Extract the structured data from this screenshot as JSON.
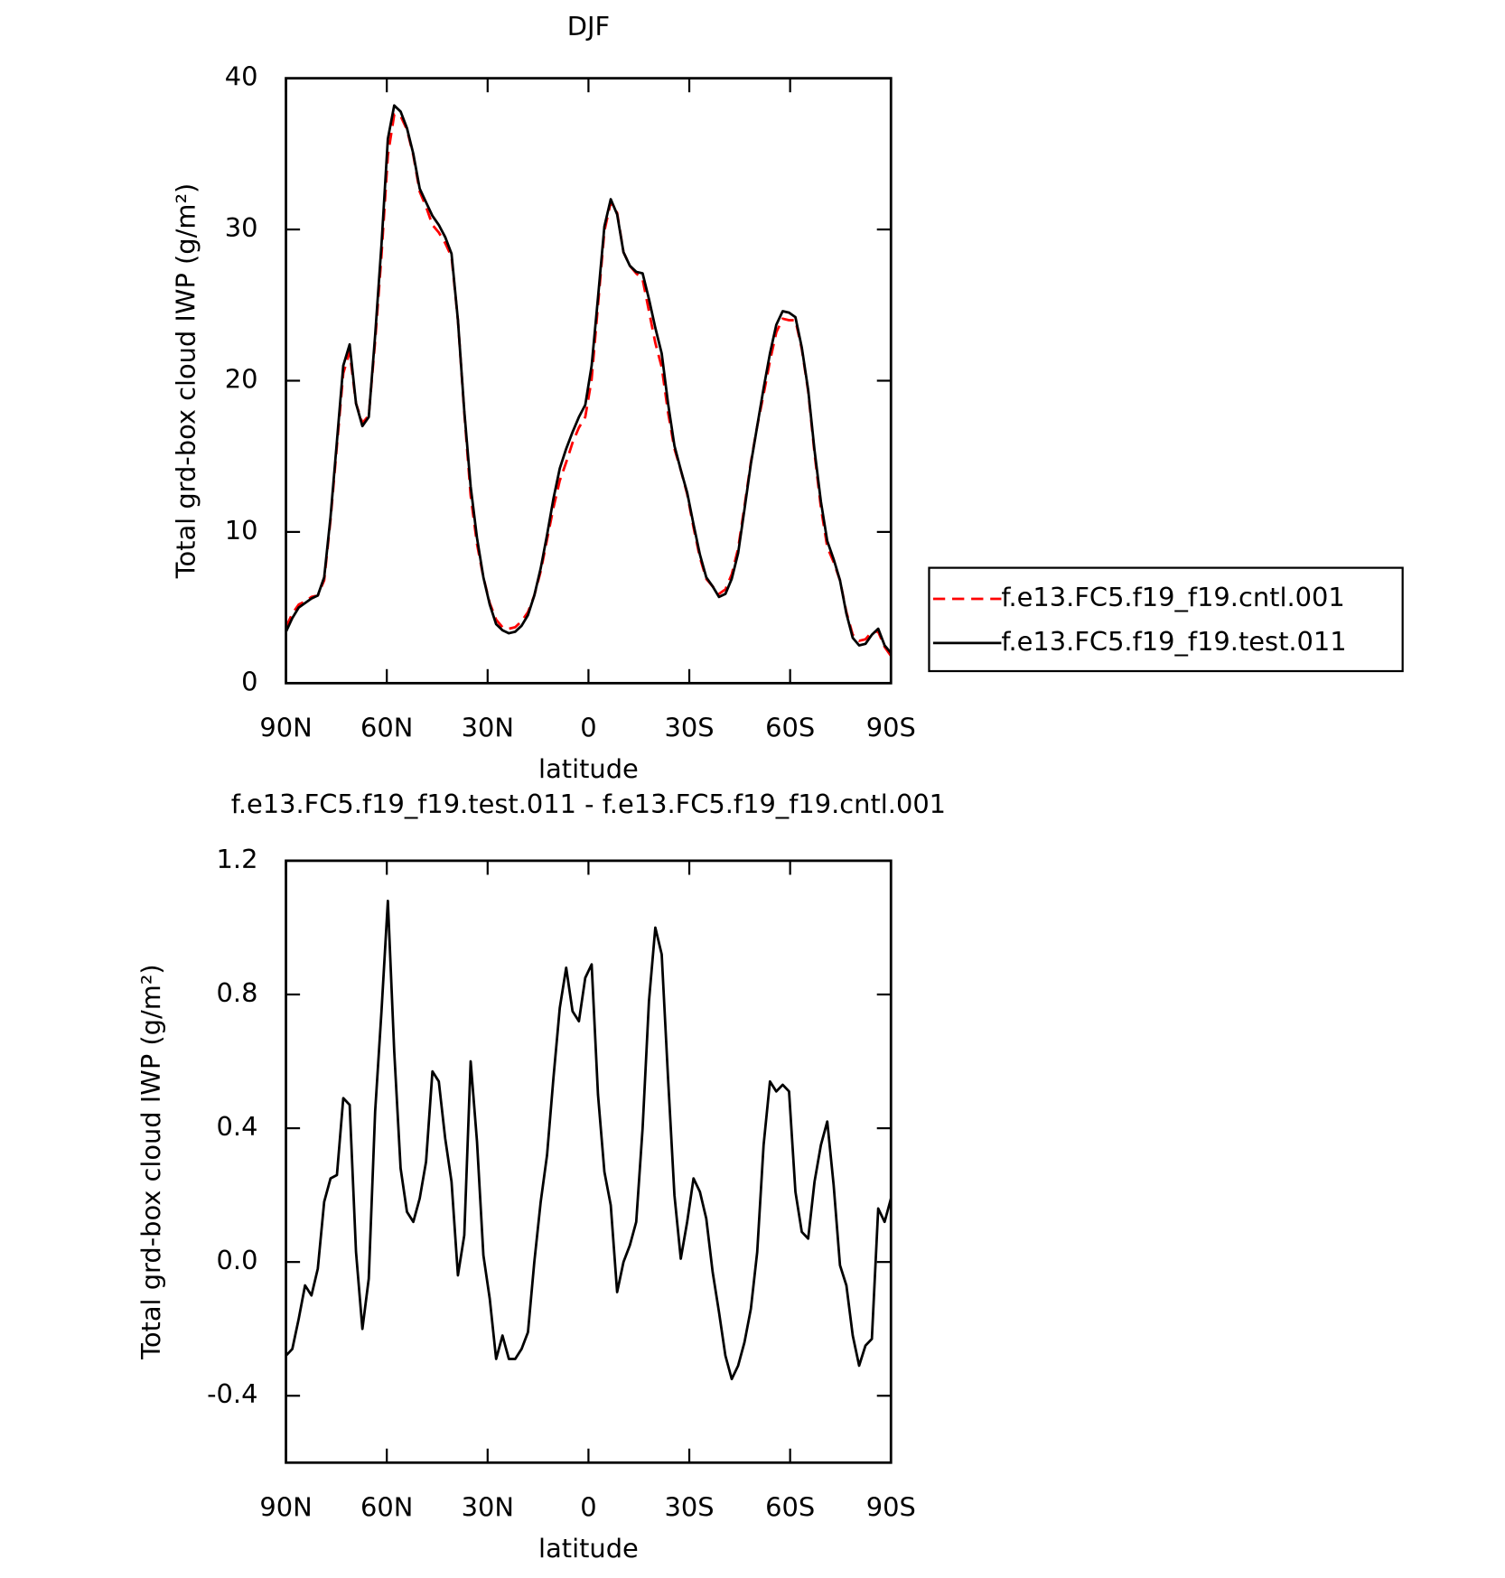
{
  "chart_data": [
    {
      "type": "line",
      "title": "DJF",
      "xlabel": "latitude",
      "ylabel": "Total grd-box cloud IWP (g/m²)",
      "x": [
        90,
        88.11,
        86.21,
        84.32,
        82.42,
        80.53,
        78.63,
        76.74,
        74.84,
        72.95,
        71.05,
        69.16,
        67.26,
        65.37,
        63.47,
        61.58,
        59.68,
        57.79,
        55.89,
        54.0,
        52.11,
        50.21,
        48.32,
        46.42,
        44.53,
        42.63,
        40.74,
        38.84,
        36.95,
        35.05,
        33.16,
        31.26,
        29.37,
        27.47,
        25.58,
        23.68,
        21.79,
        19.89,
        18.0,
        16.11,
        14.21,
        12.32,
        10.42,
        8.53,
        6.63,
        4.74,
        2.84,
        0.95,
        -0.95,
        -2.84,
        -4.74,
        -6.63,
        -8.53,
        -10.42,
        -12.32,
        -14.21,
        -16.11,
        -18.0,
        -19.89,
        -21.79,
        -23.68,
        -25.58,
        -27.47,
        -29.37,
        -31.26,
        -33.16,
        -35.05,
        -36.95,
        -38.84,
        -40.74,
        -42.63,
        -44.53,
        -46.42,
        -48.32,
        -50.21,
        -52.11,
        -54.0,
        -55.89,
        -57.79,
        -59.68,
        -61.58,
        -63.47,
        -65.37,
        -67.26,
        -69.16,
        -71.05,
        -72.95,
        -74.84,
        -76.74,
        -78.63,
        -80.53,
        -82.42,
        -84.32,
        -86.21,
        -88.11,
        -90
      ],
      "series": [
        {
          "name": "f.e13.FC5.f19_f19.cntl.001",
          "color": "#ff0000",
          "line_style": "dashed",
          "values": [
            3.7,
            4.6,
            5.2,
            5.4,
            5.7,
            5.8,
            6.8,
            10.8,
            15.7,
            20.5,
            21.9,
            18.5,
            17.2,
            17.7,
            22.6,
            28.3,
            34.9,
            37.6,
            37.5,
            36.6,
            34.9,
            32.5,
            31.5,
            30.3,
            29.8,
            29.1,
            28.2,
            24.0,
            17.9,
            12.4,
            9.2,
            7.0,
            5.3,
            4.2,
            3.7,
            3.6,
            3.7,
            4.1,
            4.7,
            5.8,
            7.4,
            9.5,
            11.6,
            13.4,
            14.6,
            15.9,
            16.9,
            17.6,
            20.1,
            25.0,
            29.9,
            31.8,
            31.1,
            28.5,
            27.6,
            27.1,
            26.7,
            24.6,
            22.5,
            20.9,
            17.9,
            15.5,
            14.1,
            12.5,
            10.3,
            8.3,
            6.9,
            6.4,
            5.9,
            6.2,
            7.2,
            8.9,
            11.7,
            14.6,
            17.0,
            19.1,
            21.3,
            23.2,
            24.1,
            24.0,
            24.0,
            22.1,
            19.3,
            15.2,
            11.6,
            9.0,
            8.0,
            6.8,
            4.7,
            3.2,
            2.8,
            2.9,
            3.4,
            3.4,
            2.4,
            1.8
          ]
        },
        {
          "name": "f.e13.FC5.f19_f19.test.011",
          "color": "#000000",
          "line_style": "solid",
          "values": [
            3.4,
            4.3,
            5.0,
            5.3,
            5.6,
            5.8,
            7.0,
            11,
            16,
            21,
            22.4,
            18.5,
            17.0,
            17.6,
            23,
            29,
            36,
            38.2,
            37.8,
            36.7,
            35,
            32.7,
            31.8,
            30.9,
            30.3,
            29.5,
            28.4,
            24,
            18,
            13,
            9.6,
            7.0,
            5.2,
            3.9,
            3.5,
            3.3,
            3.4,
            3.8,
            4.5,
            5.8,
            7.6,
            9.8,
            12.2,
            14.2,
            15.5,
            16.6,
            17.6,
            18.4,
            21,
            25.5,
            30.2,
            32,
            31,
            28.5,
            27.6,
            27.2,
            27.1,
            25.4,
            23.5,
            21.8,
            18.5,
            15.7,
            14.1,
            12.6,
            10.5,
            8.5,
            7.0,
            6.4,
            5.7,
            5.9,
            6.9,
            8.6,
            11.5,
            14.5,
            17.0,
            19.5,
            21.8,
            23.7,
            24.6,
            24.5,
            24.2,
            22.2,
            19.4,
            15.4,
            12.0,
            9.4,
            8.2,
            6.8,
            4.6,
            3.0,
            2.5,
            2.6,
            3.2,
            3.6,
            2.5,
            2.0
          ]
        }
      ],
      "xlim": [
        90,
        -90
      ],
      "xticks": [
        {
          "value": 90,
          "label": "90N"
        },
        {
          "value": 60,
          "label": "60N"
        },
        {
          "value": 30,
          "label": "30N"
        },
        0,
        {
          "value": -30,
          "label": "30S"
        },
        {
          "value": -60,
          "label": "60S"
        },
        {
          "value": -90,
          "label": "90S"
        }
      ],
      "ylim": [
        0,
        40
      ],
      "yticks": [
        0,
        10,
        20,
        30,
        40
      ],
      "legend": "right"
    },
    {
      "type": "line",
      "title": "f.e13.FC5.f19_f19.test.011 - f.e13.FC5.f19_f19.cntl.001",
      "xlabel": "latitude",
      "ylabel": "Total grd-box cloud IWP (g/m²)",
      "x": [
        90,
        88.11,
        86.21,
        84.32,
        82.42,
        80.53,
        78.63,
        76.74,
        74.84,
        72.95,
        71.05,
        69.16,
        67.26,
        65.37,
        63.47,
        61.58,
        59.68,
        57.79,
        55.89,
        54.0,
        52.11,
        50.21,
        48.32,
        46.42,
        44.53,
        42.63,
        40.74,
        38.84,
        36.95,
        35.05,
        33.16,
        31.26,
        29.37,
        27.47,
        25.58,
        23.68,
        21.79,
        19.89,
        18.0,
        16.11,
        14.21,
        12.32,
        10.42,
        8.53,
        6.63,
        4.74,
        2.84,
        0.95,
        -0.95,
        -2.84,
        -4.74,
        -6.63,
        -8.53,
        -10.42,
        -12.32,
        -14.21,
        -16.11,
        -18.0,
        -19.89,
        -21.79,
        -23.68,
        -25.58,
        -27.47,
        -29.37,
        -31.26,
        -33.16,
        -35.05,
        -36.95,
        -38.84,
        -40.74,
        -42.63,
        -44.53,
        -46.42,
        -48.32,
        -50.21,
        -52.11,
        -54.0,
        -55.89,
        -57.79,
        -59.68,
        -61.58,
        -63.47,
        -65.37,
        -67.26,
        -69.16,
        -71.05,
        -72.95,
        -74.84,
        -76.74,
        -78.63,
        -80.53,
        -82.42,
        -84.32,
        -86.21,
        -88.11,
        -90
      ],
      "color": "#000000",
      "values": [
        -0.28,
        -0.26,
        -0.17,
        -0.07,
        -0.1,
        -0.02,
        0.18,
        0.25,
        0.26,
        0.49,
        0.47,
        0.03,
        -0.2,
        -0.05,
        0.45,
        0.75,
        1.08,
        0.63,
        0.28,
        0.15,
        0.12,
        0.19,
        0.3,
        0.57,
        0.54,
        0.37,
        0.24,
        -0.04,
        0.08,
        0.6,
        0.36,
        0.02,
        -0.11,
        -0.29,
        -0.22,
        -0.29,
        -0.29,
        -0.26,
        -0.21,
        0.0,
        0.18,
        0.32,
        0.55,
        0.76,
        0.88,
        0.75,
        0.72,
        0.85,
        0.89,
        0.5,
        0.27,
        0.17,
        -0.09,
        0.0,
        0.05,
        0.12,
        0.4,
        0.78,
        1.0,
        0.92,
        0.55,
        0.2,
        0.01,
        0.12,
        0.25,
        0.21,
        0.13,
        -0.03,
        -0.15,
        -0.28,
        -0.35,
        -0.31,
        -0.24,
        -0.14,
        0.03,
        0.35,
        0.54,
        0.51,
        0.53,
        0.51,
        0.21,
        0.09,
        0.07,
        0.24,
        0.35,
        0.42,
        0.23,
        -0.01,
        -0.07,
        -0.22,
        -0.31,
        -0.25,
        -0.23,
        0.16,
        0.12,
        0.19
      ],
      "xlim": [
        90,
        -90
      ],
      "xticks": [
        {
          "value": 90,
          "label": "90N"
        },
        {
          "value": 60,
          "label": "60N"
        },
        {
          "value": 30,
          "label": "30N"
        },
        0,
        {
          "value": -30,
          "label": "30S"
        },
        {
          "value": -60,
          "label": "60S"
        },
        {
          "value": -90,
          "label": "90S"
        }
      ],
      "ylim": [
        -0.6,
        1.2
      ],
      "yticks": [
        -0.4,
        {
          "value": 0,
          "label": "0.0"
        },
        0.4,
        0.8,
        1.2
      ]
    }
  ]
}
